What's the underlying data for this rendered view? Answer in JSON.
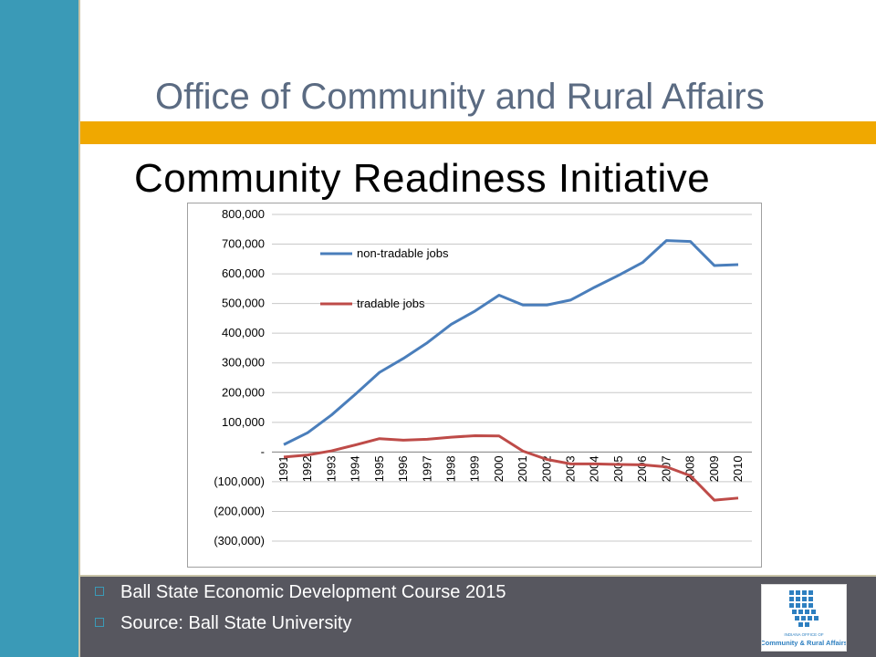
{
  "slide": {
    "header_title": "Office of Community and Rural Affairs",
    "subtitle": "Community Readiness Initiative",
    "bullets": [
      "Ball State Economic Development Course 2015",
      "Source: Ball State University"
    ],
    "logo_text": [
      "INDIANA OFFICE OF",
      "Community & Rural Affairs"
    ],
    "colors": {
      "left_bar": "#3a9ab7",
      "orange_band": "#f0a800",
      "footer": "#57575f",
      "title": "#5b6b82"
    }
  },
  "chart_data": {
    "type": "line",
    "title": "",
    "xlabel": "",
    "ylabel": "",
    "x": [
      "1991",
      "1992",
      "1993",
      "1994",
      "1995",
      "1996",
      "1997",
      "1998",
      "1999",
      "2000",
      "2001",
      "2002",
      "2003",
      "2004",
      "2005",
      "2006",
      "2007",
      "2008",
      "2009",
      "2010"
    ],
    "ylim": [
      -300000,
      800000
    ],
    "yticks": [
      -300000,
      -200000,
      -100000,
      0,
      100000,
      200000,
      300000,
      400000,
      500000,
      600000,
      700000,
      800000
    ],
    "ytick_labels": [
      "(300,000)",
      "(200,000)",
      "(100,000)",
      "-",
      "100,000",
      "200,000",
      "300,000",
      "400,000",
      "500,000",
      "600,000",
      "700,000",
      "800,000"
    ],
    "grid": true,
    "legend_position": "top-left",
    "series": [
      {
        "name": "non-tradable jobs",
        "color": "#4a7ebb",
        "values": [
          25000,
          65000,
          125000,
          195000,
          268000,
          315000,
          368000,
          430000,
          475000,
          528000,
          495000,
          495000,
          512000,
          555000,
          595000,
          638000,
          712000,
          709000,
          628000,
          631000
        ]
      },
      {
        "name": "tradable jobs",
        "color": "#be4b48",
        "values": [
          -17000,
          -10000,
          4000,
          24000,
          45000,
          40000,
          43000,
          50000,
          55000,
          54000,
          3000,
          -25000,
          -40000,
          -40000,
          -42000,
          -43000,
          -50000,
          -80000,
          -162000,
          -155000
        ]
      }
    ]
  }
}
